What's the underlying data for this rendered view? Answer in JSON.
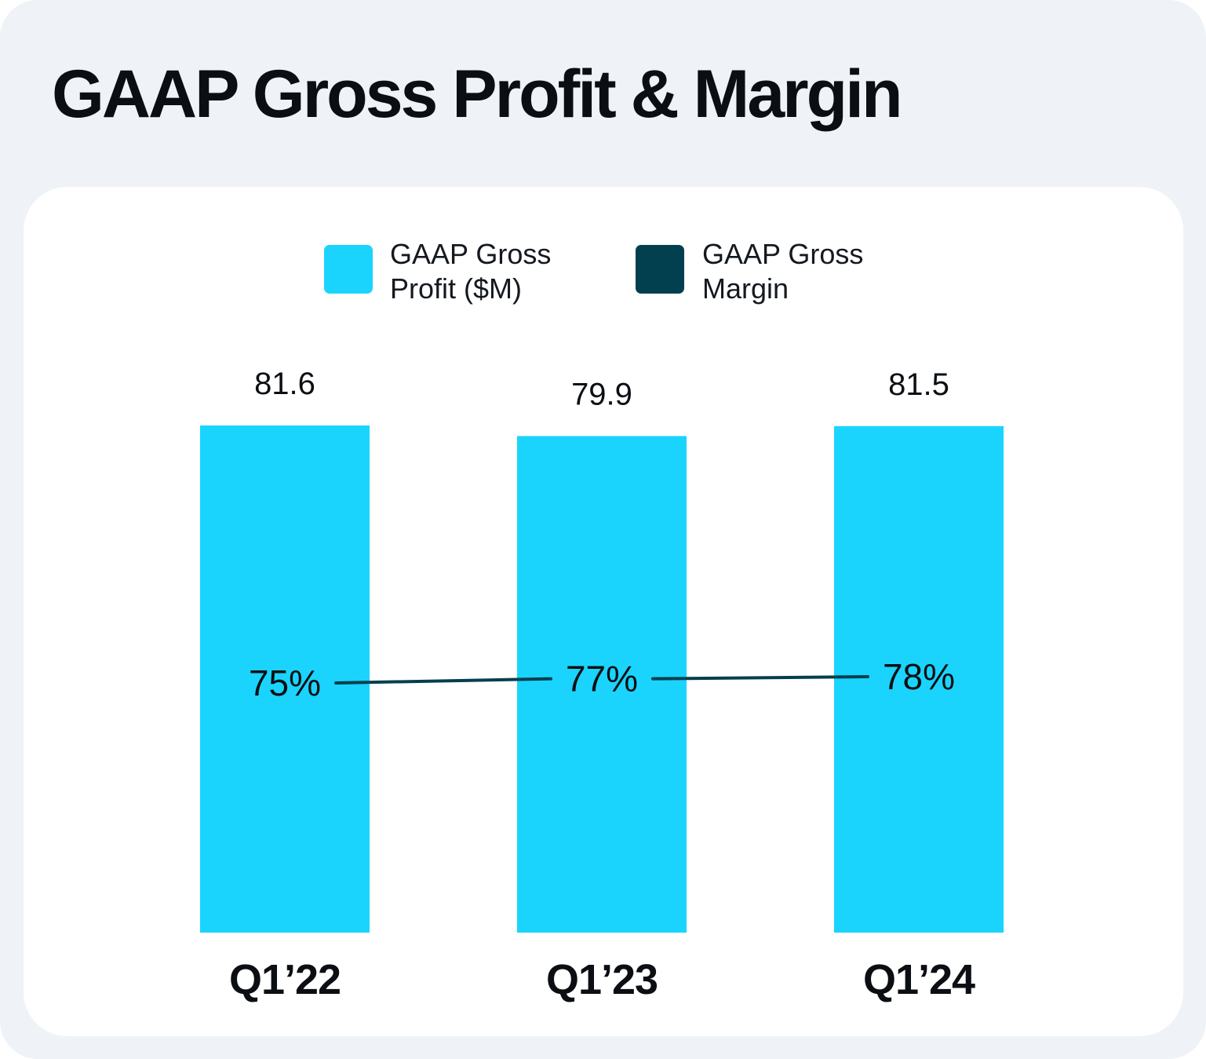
{
  "title": "GAAP Gross Profit & Margin",
  "legend": [
    {
      "label_line1": "GAAP Gross",
      "label_line2": "Profit ($M)",
      "color": "#1ad4fd"
    },
    {
      "label_line1": "GAAP Gross",
      "label_line2": "Margin",
      "color": "#023f4f"
    }
  ],
  "chart_data": {
    "type": "bar",
    "title": "GAAP Gross Profit & Margin",
    "categories": [
      "Q1’22",
      "Q1’23",
      "Q1’24"
    ],
    "series": [
      {
        "name": "GAAP Gross Profit ($M)",
        "type": "bar",
        "values": [
          81.6,
          79.9,
          81.5
        ],
        "labels": [
          "81.6",
          "79.9",
          "81.5"
        ],
        "color": "#1ad4fd"
      },
      {
        "name": "GAAP Gross Margin",
        "type": "line",
        "values": [
          75,
          77,
          78
        ],
        "labels": [
          "75%",
          "77%",
          "78%"
        ],
        "color": "#023f4f"
      }
    ],
    "xlabel": "",
    "ylabel": "",
    "ylim": [
      0,
      81.6
    ],
    "grid": false,
    "legend_position": "top-center"
  }
}
